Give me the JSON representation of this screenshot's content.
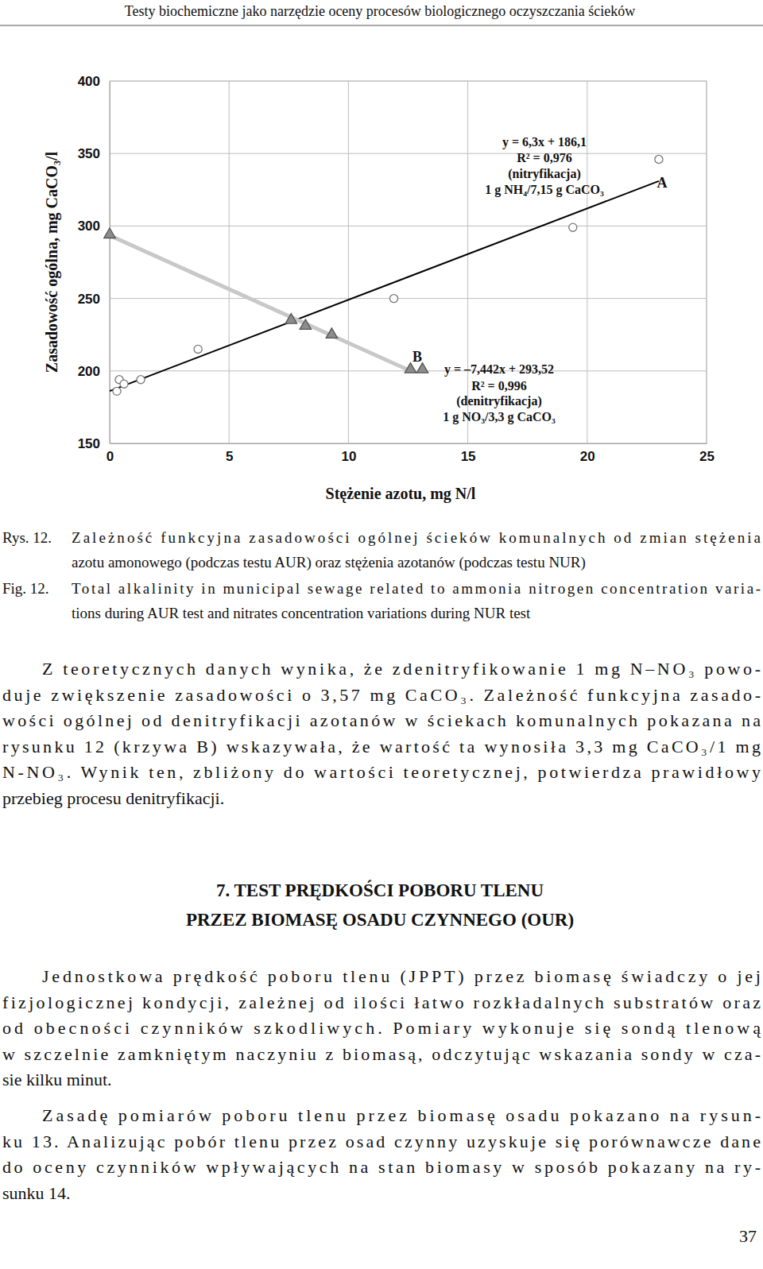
{
  "header": "Testy biochemiczne jako narzędzie oceny procesów biologicznego oczyszczania ścieków",
  "chart_data": {
    "type": "scatter",
    "x_label": "Stężenie azotu, mg N/l",
    "y_label": "Zasadowość ogólna, mg CaCO₃/l",
    "xlim": [
      0,
      25
    ],
    "ylim": [
      150,
      400
    ],
    "xticks": [
      0,
      5,
      10,
      15,
      20,
      25
    ],
    "yticks": [
      150,
      200,
      250,
      300,
      350,
      400
    ],
    "grid": true,
    "series": [
      {
        "type": "scatter",
        "marker": "circle",
        "color": "#ffffff",
        "x": [
          0.3,
          0.4,
          0.6,
          1.3,
          3.7,
          11.9,
          19.4,
          23.0
        ],
        "values": [
          186,
          194,
          191,
          194,
          215,
          250,
          299,
          346
        ]
      },
      {
        "type": "scatter",
        "marker": "triangle",
        "color": "#8c8c8c",
        "x": [
          0.0,
          7.6,
          8.2,
          9.3,
          12.6,
          13.1
        ],
        "values": [
          294,
          235,
          231,
          225,
          201,
          201
        ]
      },
      {
        "type": "line",
        "line_style": "solid",
        "color": "#000000",
        "x": [
          0,
          23
        ],
        "values": [
          186.1,
          331
        ]
      },
      {
        "type": "line",
        "line_style": "solid",
        "color": "#c8c8c8",
        "x": [
          0,
          12.6
        ],
        "values": [
          293.5,
          200
        ]
      }
    ],
    "annotations": [
      {
        "text": "y = 6,3x + 186,1"
      },
      {
        "text": "R² = 0,976"
      },
      {
        "text": "(nitryfikacja)"
      },
      {
        "text": "1 g NH₄/7,15 g CaCO₃"
      },
      {
        "text": "A"
      },
      {
        "text": "B"
      },
      {
        "text": "y = –7,442x + 293,52"
      },
      {
        "text": "R² = 0,996"
      },
      {
        "text": "(denitryfikacja)"
      },
      {
        "text": "1 g NO₃/3,3 g CaCO₃"
      }
    ]
  },
  "caption": {
    "pl_label": "Rys. 12.",
    "pl_lines": [
      "Zależność funkcyjna zasadowości ogólnej ścieków komunalnych od zmian stężenia",
      "azotu amonowego (podczas testu AUR) oraz stężenia azotanów (podczas testu NUR)"
    ],
    "en_label": "Fig. 12.",
    "en_lines": [
      "Total alkalinity in municipal sewage related to ammonia nitrogen concentration varia-",
      "tions during AUR test and nitrates concentration variations during NUR test"
    ]
  },
  "paragraph_1": [
    "Z teoretycznych danych wynika, że zdenitryfikowanie 1 mg N–NO₃ powo-",
    "duje zwiększenie zasadowości o 3,57 mg CaCO₃. Zależność funkcyjna zasado-",
    "wości ogólnej od denitryfikacji azotanów w ściekach komunalnych pokazana na",
    "rysunku 12 (krzywa B) wskazywała, że wartość ta wynosiła 3,3 mg CaCO₃/1 mg",
    "N-NO₃. Wynik ten, zbliżony do wartości teoretycznej, potwierdza prawidłowy",
    "przebieg procesu denitryfikacji."
  ],
  "section_heading": [
    "7. TEST PRĘDKOŚCI POBORU TLENU",
    "PRZEZ BIOMASĘ OSADU CZYNNEGO (OUR)"
  ],
  "paragraph_2": [
    "Jednostkowa prędkość poboru tlenu (JPPT) przez biomasę świadczy o jej",
    "fizjologicznej kondycji, zależnej od ilości łatwo rozkładalnych substratów oraz",
    "od obecności czynników szkodliwych. Pomiary wykonuje się sondą tlenową",
    "w szczelnie zamkniętym naczyniu z biomasą, odczytując wskazania sondy w cza-",
    "sie kilku minut."
  ],
  "paragraph_3": [
    "Zasadę pomiarów poboru tlenu przez biomasę osadu pokazano na rysun-",
    "ku 13. Analizując pobór tlenu przez osad czynny uzyskuje się porównawcze dane",
    "do oceny czynników wpływających na stan biomasy w sposób pokazany na ry-",
    "sunku 14."
  ],
  "page_number": "37"
}
